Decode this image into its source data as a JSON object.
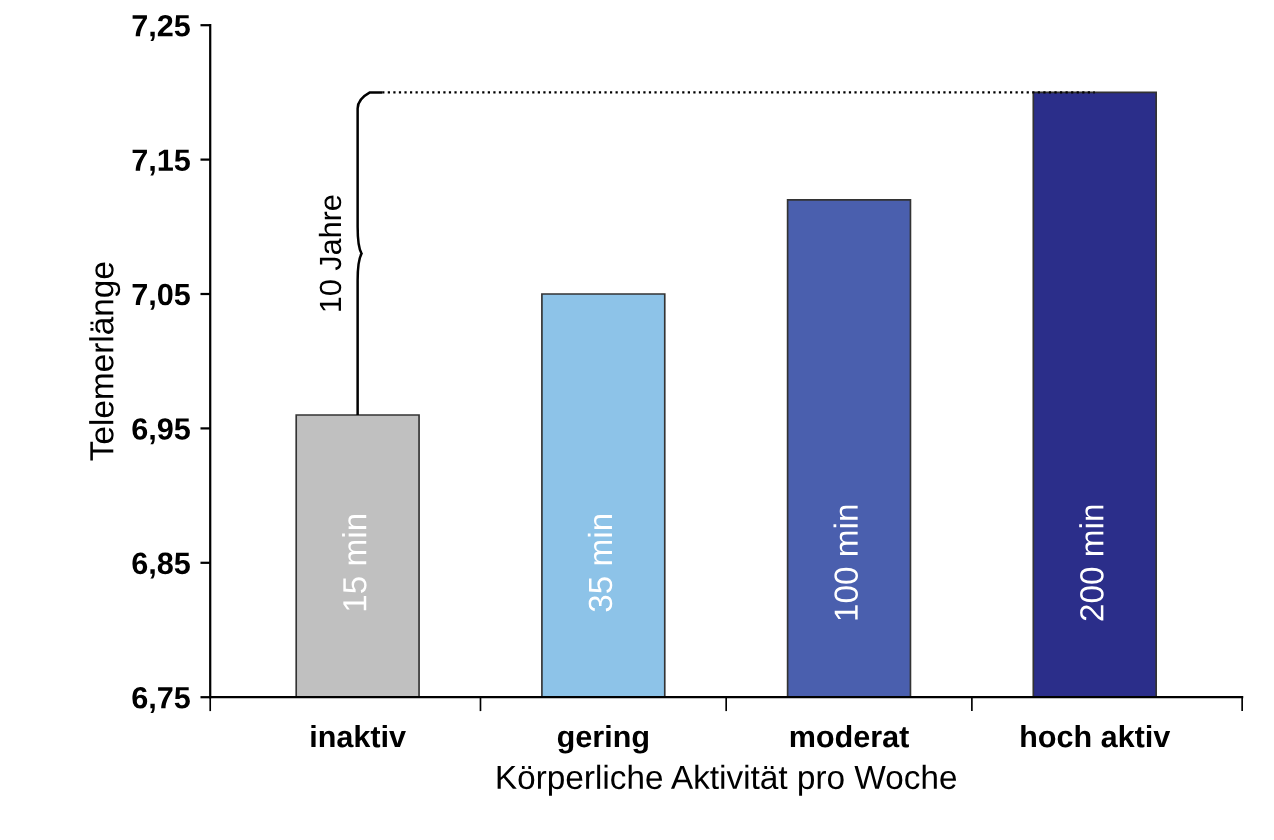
{
  "chart_data": {
    "type": "bar",
    "xlabel": "Körperliche Aktivität pro Woche",
    "ylabel": "Telemerlänge",
    "categories": [
      "inaktiv",
      "gering",
      "moderat",
      "hoch aktiv"
    ],
    "values": [
      6.96,
      7.05,
      7.12,
      7.2
    ],
    "colors": [
      "#c0c0c0",
      "#8dc3e8",
      "#4a5fae",
      "#2b2e8a"
    ],
    "ylim": [
      6.75,
      7.25
    ],
    "yticks": [
      {
        "value": 6.75,
        "label": "6,75"
      },
      {
        "value": 6.85,
        "label": "6,85"
      },
      {
        "value": 6.95,
        "label": "6,95"
      },
      {
        "value": 7.05,
        "label": "7,05"
      },
      {
        "value": 7.15,
        "label": "7,15"
      },
      {
        "value": 7.25,
        "label": "7,25"
      }
    ],
    "grid": false,
    "legend": false,
    "ref_lines": [
      {
        "axis": "y",
        "value": 7.2,
        "color": "#000000",
        "line_style": "dotted"
      }
    ],
    "annotations": [
      "15 min",
      "35 min",
      "100 min",
      "200 min",
      "10 Jahre"
    ]
  }
}
